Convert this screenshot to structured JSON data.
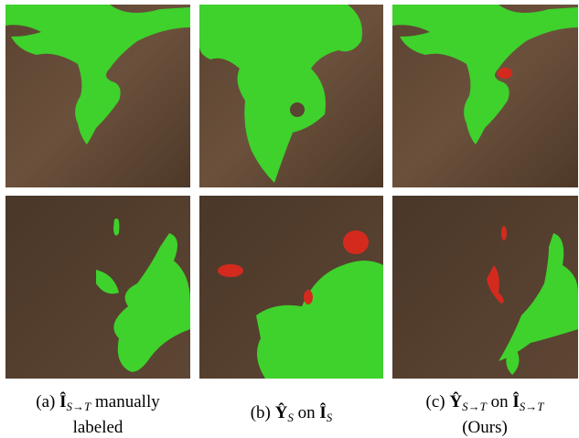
{
  "captions": [
    {
      "label": "(a)",
      "symbol": "Î",
      "subscript": "S→T",
      "lines": [
        "manually",
        "labeled"
      ]
    },
    {
      "label": "(b)",
      "symbol": "Ŷ",
      "subscript": "S",
      "connector": "on",
      "symbol2": "Î",
      "subscript2": "S"
    },
    {
      "label": "(c)",
      "symbol": "Ŷ",
      "subscript": "S→T",
      "connector": "on",
      "symbol2": "Î",
      "subscript2": "S→T",
      "note": "(Ours)"
    }
  ]
}
